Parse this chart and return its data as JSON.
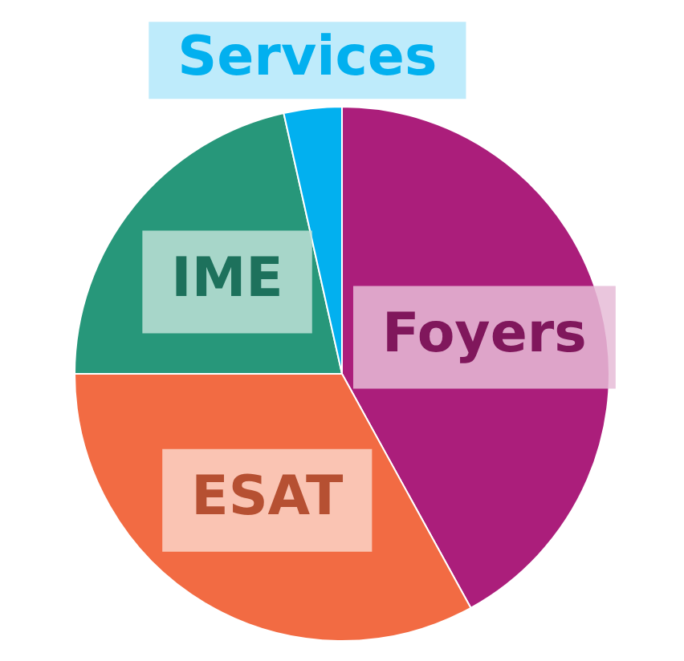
{
  "chart_data": {
    "type": "pie",
    "categories": [
      "Foyers",
      "ESAT",
      "IME",
      "Services"
    ],
    "values": [
      42,
      33,
      21.5,
      3.5
    ],
    "colors": [
      "#ab1e7b",
      "#f26b43",
      "#27977a",
      "#02b0ef"
    ]
  }
}
